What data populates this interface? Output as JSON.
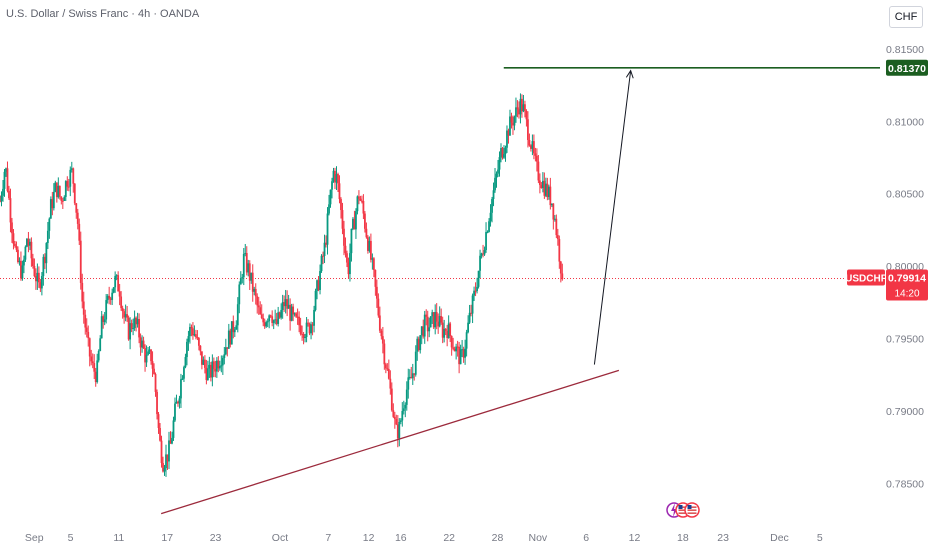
{
  "header": {
    "title": "U.S. Dollar / Swiss Franc · 4h · OANDA"
  },
  "currency_button": "CHF",
  "price_badge": {
    "symbol": "USDCHF",
    "price": "0.79914",
    "countdown": "14:20",
    "color": "#f23645"
  },
  "target_badge": {
    "price": "0.81370",
    "color": "#1b5e20"
  },
  "colors": {
    "up": "#089981",
    "down": "#f23645",
    "trendline": "#9c2a3c",
    "target_line": "#1b5e20",
    "arrow": "#131722",
    "axis_text": "#787b86"
  },
  "event_icons": [
    "lightning-icon",
    "us-flag-icon",
    "us-flag-icon"
  ],
  "chart_data": {
    "type": "candlestick",
    "symbol": "USDCHF",
    "interval": "4h",
    "source": "OANDA",
    "y_ticks": [
      "0.81500",
      "0.81000",
      "0.80500",
      "0.80000",
      "0.79500",
      "0.79000",
      "0.78500"
    ],
    "x_ticks": [
      {
        "label": "Sep",
        "x": 0
      },
      {
        "label": "5",
        "x": 4
      },
      {
        "label": "11",
        "x": 9.33
      },
      {
        "label": "17",
        "x": 14.67
      },
      {
        "label": "23",
        "x": 20
      },
      {
        "label": "Oct",
        "x": 27.11
      },
      {
        "label": "7",
        "x": 32.44
      },
      {
        "label": "12",
        "x": 36.89
      },
      {
        "label": "16",
        "x": 40.44
      },
      {
        "label": "22",
        "x": 45.78
      },
      {
        "label": "28",
        "x": 51.11
      },
      {
        "label": "Nov",
        "x": 55.56
      },
      {
        "label": "6",
        "x": 60.89
      },
      {
        "label": "12",
        "x": 66.22
      },
      {
        "label": "18",
        "x": 71.56
      },
      {
        "label": "23",
        "x": 76
      },
      {
        "label": "Dec",
        "x": 82.22
      },
      {
        "label": "5",
        "x": 86.67
      }
    ],
    "ylim": [
      0.7826,
      0.817
    ],
    "xlim": [
      -3.78,
      90.0
    ],
    "close_series": [
      [
        -3.78,
        0.8045
      ],
      [
        -3.2,
        0.807
      ],
      [
        -2.6,
        0.8035
      ],
      [
        -2.0,
        0.8005
      ],
      [
        -1.3,
        0.7995
      ],
      [
        -0.8,
        0.802
      ],
      [
        -0.2,
        0.8002
      ],
      [
        0.5,
        0.7985
      ],
      [
        1.2,
        0.801
      ],
      [
        1.8,
        0.804
      ],
      [
        2.4,
        0.8055
      ],
      [
        3.0,
        0.8045
      ],
      [
        3.6,
        0.806
      ],
      [
        4.2,
        0.8065
      ],
      [
        4.8,
        0.803
      ],
      [
        5.3,
        0.7975
      ],
      [
        5.9,
        0.7945
      ],
      [
        6.4,
        0.793
      ],
      [
        6.9,
        0.7925
      ],
      [
        7.4,
        0.7958
      ],
      [
        7.9,
        0.797
      ],
      [
        8.4,
        0.7982
      ],
      [
        8.9,
        0.799
      ],
      [
        9.4,
        0.7985
      ],
      [
        9.9,
        0.7965
      ],
      [
        10.4,
        0.7955
      ],
      [
        10.9,
        0.7962
      ],
      [
        11.4,
        0.7957
      ],
      [
        11.9,
        0.7945
      ],
      [
        12.4,
        0.7935
      ],
      [
        12.9,
        0.7938
      ],
      [
        13.3,
        0.792
      ],
      [
        13.8,
        0.788
      ],
      [
        14.2,
        0.7865
      ],
      [
        14.6,
        0.7868
      ],
      [
        15.0,
        0.7875
      ],
      [
        15.5,
        0.7898
      ],
      [
        15.9,
        0.791
      ],
      [
        16.4,
        0.793
      ],
      [
        16.8,
        0.7948
      ],
      [
        17.3,
        0.7958
      ],
      [
        17.8,
        0.7952
      ],
      [
        18.3,
        0.7938
      ],
      [
        18.8,
        0.793
      ],
      [
        19.3,
        0.7925
      ],
      [
        19.8,
        0.793
      ],
      [
        20.3,
        0.7935
      ],
      [
        20.8,
        0.794
      ],
      [
        21.3,
        0.7948
      ],
      [
        21.8,
        0.7955
      ],
      [
        22.3,
        0.7965
      ],
      [
        22.7,
        0.7985
      ],
      [
        23.1,
        0.8005
      ],
      [
        23.6,
        0.7998
      ],
      [
        24.1,
        0.7985
      ],
      [
        24.6,
        0.7972
      ],
      [
        25.1,
        0.796
      ],
      [
        25.6,
        0.7965
      ],
      [
        26.1,
        0.797
      ],
      [
        26.6,
        0.7958
      ],
      [
        27.1,
        0.7965
      ],
      [
        27.6,
        0.7975
      ],
      [
        28.1,
        0.797
      ],
      [
        28.6,
        0.7962
      ],
      [
        29.1,
        0.796
      ],
      [
        29.6,
        0.7958
      ],
      [
        30.1,
        0.7955
      ],
      [
        30.6,
        0.7962
      ],
      [
        31.1,
        0.798
      ],
      [
        31.6,
        0.7998
      ],
      [
        32.1,
        0.8015
      ],
      [
        32.6,
        0.8045
      ],
      [
        33.0,
        0.8065
      ],
      [
        33.4,
        0.806
      ],
      [
        33.8,
        0.804
      ],
      [
        34.2,
        0.8018
      ],
      [
        34.6,
        0.7995
      ],
      [
        35.0,
        0.802
      ],
      [
        35.4,
        0.8035
      ],
      [
        35.8,
        0.805
      ],
      [
        36.2,
        0.804
      ],
      [
        36.6,
        0.8025
      ],
      [
        37.0,
        0.801
      ],
      [
        37.4,
        0.7995
      ],
      [
        37.8,
        0.7975
      ],
      [
        38.2,
        0.7958
      ],
      [
        38.6,
        0.794
      ],
      [
        39.0,
        0.7925
      ],
      [
        39.5,
        0.7905
      ],
      [
        39.9,
        0.7885
      ],
      [
        40.3,
        0.7888
      ],
      [
        40.7,
        0.7905
      ],
      [
        41.1,
        0.7915
      ],
      [
        41.5,
        0.792
      ],
      [
        41.9,
        0.793
      ],
      [
        42.3,
        0.7945
      ],
      [
        42.7,
        0.7955
      ],
      [
        43.1,
        0.796
      ],
      [
        43.5,
        0.7958
      ],
      [
        43.9,
        0.7962
      ],
      [
        44.3,
        0.7965
      ],
      [
        44.7,
        0.796
      ],
      [
        45.1,
        0.7955
      ],
      [
        45.5,
        0.7958
      ],
      [
        45.9,
        0.7952
      ],
      [
        46.3,
        0.7945
      ],
      [
        46.7,
        0.794
      ],
      [
        47.1,
        0.7935
      ],
      [
        47.5,
        0.7945
      ],
      [
        47.9,
        0.796
      ],
      [
        48.3,
        0.7972
      ],
      [
        48.7,
        0.7985
      ],
      [
        49.1,
        0.8
      ],
      [
        49.5,
        0.8012
      ],
      [
        49.9,
        0.8025
      ],
      [
        50.3,
        0.804
      ],
      [
        50.7,
        0.8052
      ],
      [
        51.1,
        0.8065
      ],
      [
        51.5,
        0.8078
      ],
      [
        51.9,
        0.8085
      ],
      [
        52.3,
        0.8095
      ],
      [
        52.7,
        0.81
      ],
      [
        53.1,
        0.8105
      ],
      [
        53.5,
        0.8112
      ],
      [
        53.9,
        0.811
      ],
      [
        54.3,
        0.8098
      ],
      [
        54.7,
        0.8088
      ],
      [
        55.1,
        0.8075
      ],
      [
        55.5,
        0.8065
      ],
      [
        55.9,
        0.806
      ],
      [
        56.3,
        0.8055
      ],
      [
        56.7,
        0.805
      ],
      [
        57.1,
        0.8045
      ],
      [
        57.5,
        0.803
      ],
      [
        57.9,
        0.801
      ],
      [
        58.3,
        0.7991
      ]
    ],
    "annotations": {
      "trendline": {
        "from": [
          14.0,
          0.7829
        ],
        "to": [
          64.5,
          0.7928
        ]
      },
      "target_line": {
        "from": [
          51.8,
          0.8137
        ],
        "to": [
          90.0,
          0.8137
        ],
        "value": 0.8137
      },
      "arrow": {
        "from": [
          61.8,
          0.7932
        ],
        "to": [
          65.8,
          0.8135
        ]
      },
      "current_price_line": {
        "value": 0.79914
      }
    }
  }
}
